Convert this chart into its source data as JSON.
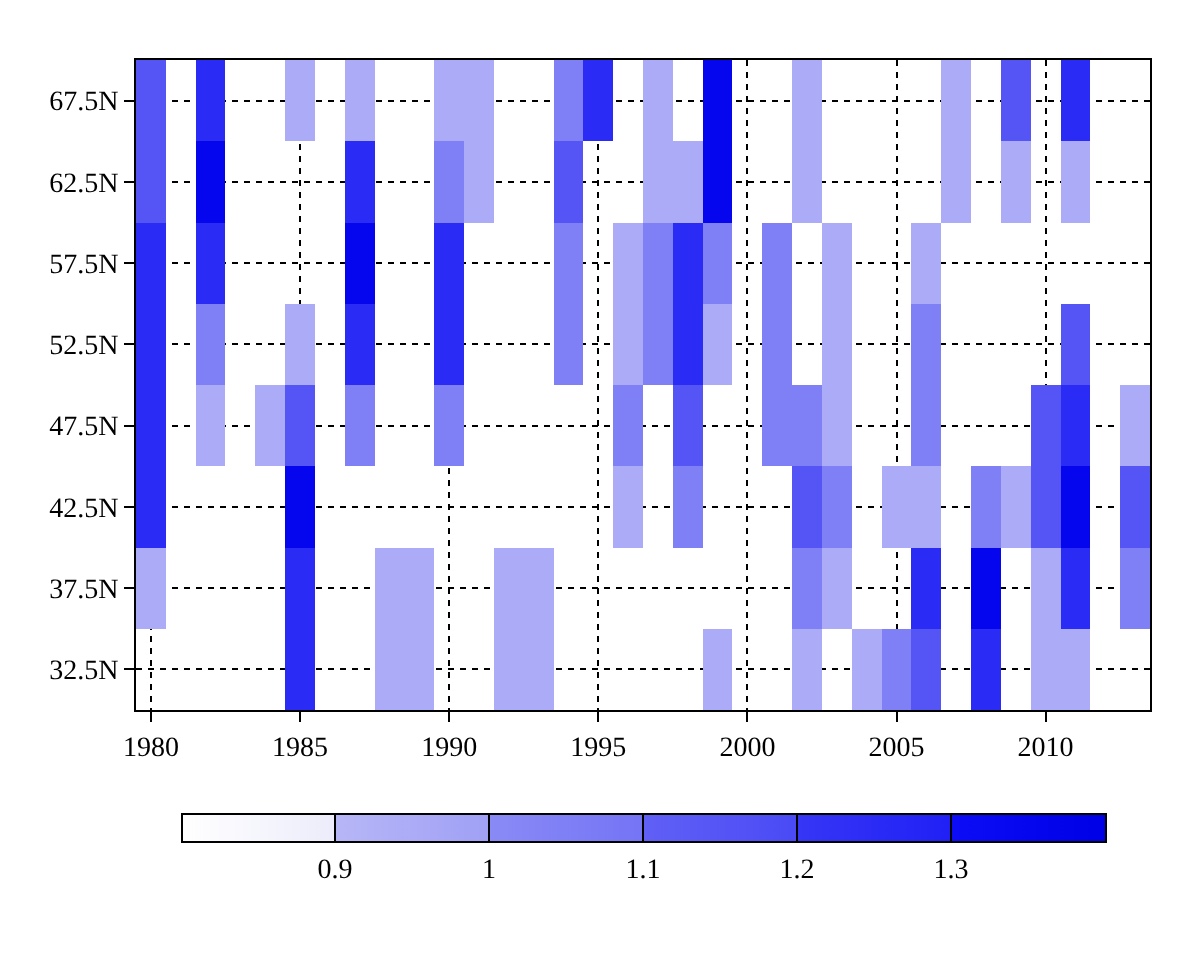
{
  "chart_data": {
    "type": "heatmap",
    "x": [
      1980,
      1981,
      1982,
      1983,
      1984,
      1985,
      1986,
      1987,
      1988,
      1989,
      1990,
      1991,
      1992,
      1993,
      1994,
      1995,
      1996,
      1997,
      1998,
      1999,
      2000,
      2001,
      2002,
      2003,
      2004,
      2005,
      2006,
      2007,
      2008,
      2009,
      2010,
      2011,
      2012,
      2013
    ],
    "y_categories": [
      "67.5N",
      "62.5N",
      "57.5N",
      "52.5N",
      "47.5N",
      "42.5N",
      "37.5N",
      "32.5N"
    ],
    "cells": [
      [
        1.15,
        null,
        1.25,
        null,
        null,
        0.95,
        null,
        0.95,
        null,
        null,
        0.95,
        0.95,
        null,
        null,
        1.05,
        1.25,
        null,
        0.95,
        null,
        1.35,
        null,
        null,
        0.95,
        null,
        null,
        null,
        null,
        0.95,
        null,
        1.15,
        null,
        1.25,
        null,
        null
      ],
      [
        1.15,
        null,
        1.35,
        null,
        null,
        null,
        null,
        1.25,
        null,
        null,
        1.05,
        0.95,
        null,
        null,
        1.15,
        null,
        null,
        0.95,
        0.95,
        1.35,
        null,
        null,
        0.95,
        null,
        null,
        null,
        null,
        0.95,
        null,
        0.95,
        null,
        0.95,
        null,
        null
      ],
      [
        1.25,
        null,
        1.25,
        null,
        null,
        null,
        null,
        1.35,
        null,
        null,
        1.25,
        null,
        null,
        null,
        1.05,
        null,
        0.95,
        1.05,
        1.25,
        1.05,
        null,
        1.05,
        null,
        0.95,
        null,
        null,
        0.95,
        null,
        null,
        null,
        null,
        null,
        null,
        null
      ],
      [
        1.25,
        null,
        1.05,
        null,
        null,
        0.95,
        null,
        1.25,
        null,
        null,
        1.25,
        null,
        null,
        null,
        1.05,
        null,
        0.95,
        1.05,
        1.25,
        0.95,
        null,
        1.05,
        null,
        0.95,
        null,
        null,
        1.05,
        null,
        null,
        null,
        null,
        1.15,
        null,
        null
      ],
      [
        1.25,
        null,
        0.95,
        null,
        0.95,
        1.15,
        null,
        1.05,
        null,
        null,
        1.05,
        null,
        null,
        null,
        null,
        null,
        1.05,
        null,
        1.15,
        null,
        null,
        1.05,
        1.05,
        0.95,
        null,
        null,
        1.05,
        null,
        null,
        null,
        1.15,
        1.25,
        null,
        0.95
      ],
      [
        1.25,
        null,
        null,
        null,
        null,
        1.35,
        null,
        null,
        null,
        null,
        null,
        null,
        null,
        null,
        null,
        null,
        0.95,
        null,
        1.05,
        null,
        null,
        null,
        1.15,
        1.05,
        null,
        0.95,
        0.95,
        null,
        1.05,
        0.95,
        1.15,
        1.35,
        null,
        1.15
      ],
      [
        0.95,
        null,
        null,
        null,
        null,
        1.25,
        null,
        null,
        0.95,
        0.95,
        null,
        null,
        0.95,
        0.95,
        null,
        null,
        null,
        null,
        null,
        null,
        null,
        null,
        1.05,
        0.95,
        null,
        null,
        1.25,
        null,
        1.35,
        null,
        0.95,
        1.25,
        null,
        1.05
      ],
      [
        null,
        null,
        null,
        null,
        null,
        1.25,
        null,
        null,
        0.95,
        0.95,
        null,
        null,
        0.95,
        0.95,
        null,
        null,
        null,
        null,
        null,
        0.95,
        null,
        null,
        0.95,
        null,
        0.95,
        1.05,
        1.15,
        null,
        1.25,
        null,
        0.95,
        0.95,
        null,
        null
      ]
    ],
    "xlim": [
      1979.5,
      2013.5
    ],
    "xticks": [
      1980,
      1985,
      1990,
      1995,
      2000,
      2005,
      2010
    ],
    "clim": [
      0.8,
      1.4
    ],
    "cticks": [
      0.9,
      1,
      1.1,
      1.2,
      1.3
    ],
    "grid": true
  }
}
